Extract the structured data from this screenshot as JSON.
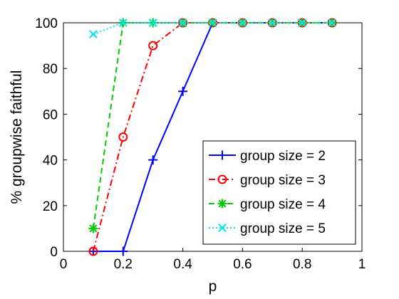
{
  "chart_data": {
    "type": "line",
    "xlabel": "p",
    "ylabel": "% groupwise faithful",
    "xlim": [
      0,
      1
    ],
    "ylim": [
      0,
      100
    ],
    "xticks": [
      "0",
      "0.2",
      "0.4",
      "0.6",
      "0.8",
      "1"
    ],
    "yticks": [
      "0",
      "20",
      "40",
      "60",
      "80",
      "100"
    ],
    "grid": false,
    "legend_position": "bottom-right",
    "series": [
      {
        "name": "group size = 2",
        "color": "#0000ff",
        "line_style": "solid",
        "marker": "plus",
        "x": [
          0.1,
          0.2,
          0.3,
          0.4,
          0.5,
          0.6,
          0.7,
          0.8,
          0.9
        ],
        "y": [
          0,
          0,
          40,
          70,
          100,
          100,
          100,
          100,
          100
        ]
      },
      {
        "name": "group size = 3",
        "color": "#ff0000",
        "line_style": "dashdot",
        "marker": "circle",
        "x": [
          0.1,
          0.2,
          0.3,
          0.4,
          0.5,
          0.6,
          0.7,
          0.8,
          0.9
        ],
        "y": [
          0,
          50,
          90,
          100,
          100,
          100,
          100,
          100,
          100
        ]
      },
      {
        "name": "group size = 4",
        "color": "#00cc00",
        "line_style": "dashed",
        "marker": "asterisk",
        "x": [
          0.1,
          0.2,
          0.3,
          0.4,
          0.5,
          0.6,
          0.7,
          0.8,
          0.9
        ],
        "y": [
          10,
          100,
          100,
          100,
          100,
          100,
          100,
          100,
          100
        ]
      },
      {
        "name": "group size = 5",
        "color": "#00e5ee",
        "line_style": "dotted",
        "marker": "x",
        "x": [
          0.1,
          0.2,
          0.3,
          0.4,
          0.5,
          0.6,
          0.7,
          0.8,
          0.9
        ],
        "y": [
          95,
          100,
          100,
          100,
          100,
          100,
          100,
          100,
          100
        ]
      }
    ]
  }
}
